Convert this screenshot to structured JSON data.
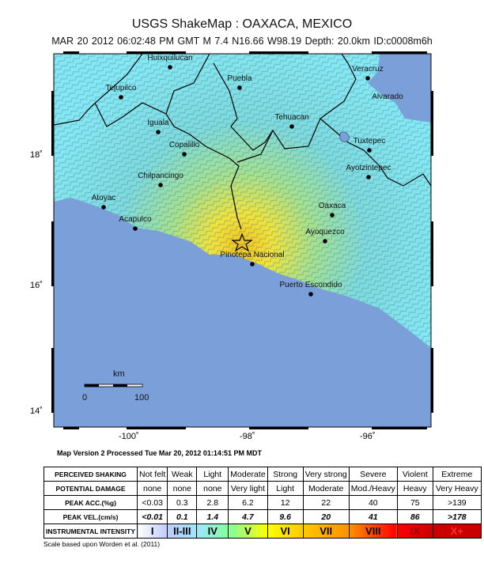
{
  "header": {
    "title": "USGS ShakeMap : OAXACA, MEXICO",
    "subtitle": "MAR 20 2012 06:02:48 PM GMT   M 7.4   N16.66 W98.19   Depth: 20.0km   ID:c0008m6h"
  },
  "map": {
    "colors": {
      "ocean": "#7b9fd8",
      "land_low": "#8ae6ef",
      "land_mid": "#9fe6a0",
      "land_high": "#f2d83a"
    },
    "cities": [
      {
        "name": "Huixquilucan"
      },
      {
        "name": "Tejupilco"
      },
      {
        "name": "Puebla"
      },
      {
        "name": "Veracruz"
      },
      {
        "name": "Alvarado"
      },
      {
        "name": "Tehuacan"
      },
      {
        "name": "Iguala"
      },
      {
        "name": "Copalillo"
      },
      {
        "name": "Tuxtepec"
      },
      {
        "name": "Ayotzintepec"
      },
      {
        "name": "Chilpancingo"
      },
      {
        "name": "Atoyac"
      },
      {
        "name": "Oaxaca"
      },
      {
        "name": "Acapulco"
      },
      {
        "name": "Ayoquezco"
      },
      {
        "name": "Pinotepa Nacional"
      },
      {
        "name": "Puerto Escondido"
      }
    ],
    "epicenter_icon": "star-icon",
    "lat_ticks": [
      "18˚",
      "16˚",
      "14˚"
    ],
    "lon_ticks": [
      "-100˚",
      "-98˚",
      "-96˚"
    ],
    "scale": {
      "unit": "km",
      "start": "0",
      "end": "100"
    }
  },
  "version_line": "Map Version 2 Processed Tue Mar 20, 2012 01:14:51 PM MDT",
  "legend": {
    "row_labels": [
      "PERCEIVED SHAKING",
      "POTENTIAL DAMAGE",
      "PEAK ACC.(%g)",
      "PEAK VEL.(cm/s)",
      "INSTRUMENTAL INTENSITY"
    ],
    "shaking": [
      "Not felt",
      "Weak",
      "Light",
      "Moderate",
      "Strong",
      "Very strong",
      "Severe",
      "Violent",
      "Extreme"
    ],
    "damage": [
      "none",
      "none",
      "none",
      "Very light",
      "Light",
      "Moderate",
      "Mod./Heavy",
      "Heavy",
      "Very Heavy"
    ],
    "acc": [
      "<0.03",
      "0.3",
      "2.8",
      "6.2",
      "12",
      "22",
      "40",
      "75",
      ">139"
    ],
    "vel": [
      "<0.01",
      "0.1",
      "1.4",
      "4.7",
      "9.6",
      "20",
      "41",
      "86",
      ">178"
    ],
    "intensity": [
      "I",
      "II-III",
      "IV",
      "V",
      "VI",
      "VII",
      "VIII",
      "IX",
      "X+"
    ],
    "intensity_colors": [
      "#ffffff",
      "#bfccff",
      "#a0e6ff",
      "#80ffa0",
      "#ffff00",
      "#ffc800",
      "#ff9100",
      "#ff0000",
      "#c80000"
    ],
    "footnote": "Scale based upon Worden et al. (2011)"
  }
}
